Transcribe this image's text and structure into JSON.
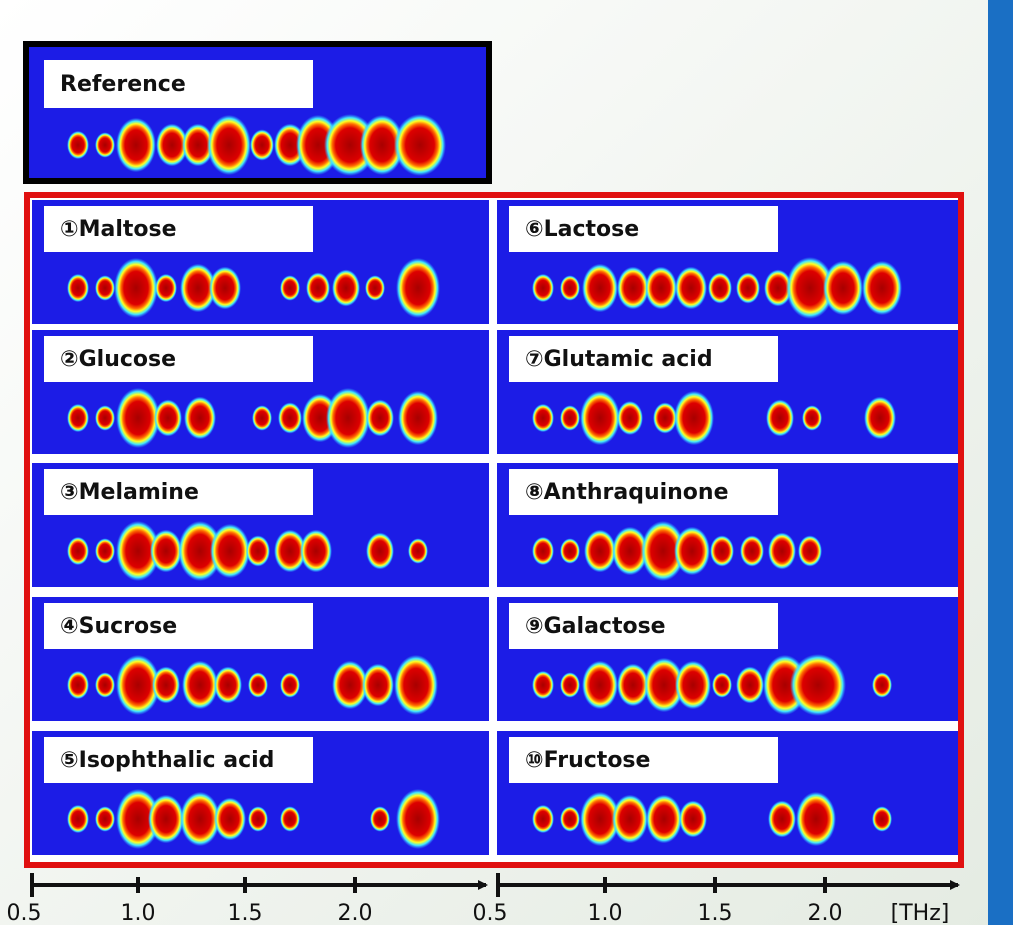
{
  "reference": {
    "label": "Reference"
  },
  "panels": [
    {
      "label": "①Maltose"
    },
    {
      "label": "②Glucose"
    },
    {
      "label": "③Melamine"
    },
    {
      "label": "④Sucrose"
    },
    {
      "label": "⑤Isophthalic acid"
    },
    {
      "label": "⑥Lactose"
    },
    {
      "label": "⑦Glutamic acid"
    },
    {
      "label": "⑧Anthraquinone"
    },
    {
      "label": "⑨Galactose"
    },
    {
      "label": "⑩Fructose"
    }
  ],
  "axes": [
    {
      "ticks": [
        "0.5",
        "1.0",
        "1.5",
        "2.0"
      ]
    },
    {
      "ticks": [
        "0.5",
        "1.0",
        "1.5",
        "2.0"
      ],
      "unit": "[THz]"
    }
  ]
}
